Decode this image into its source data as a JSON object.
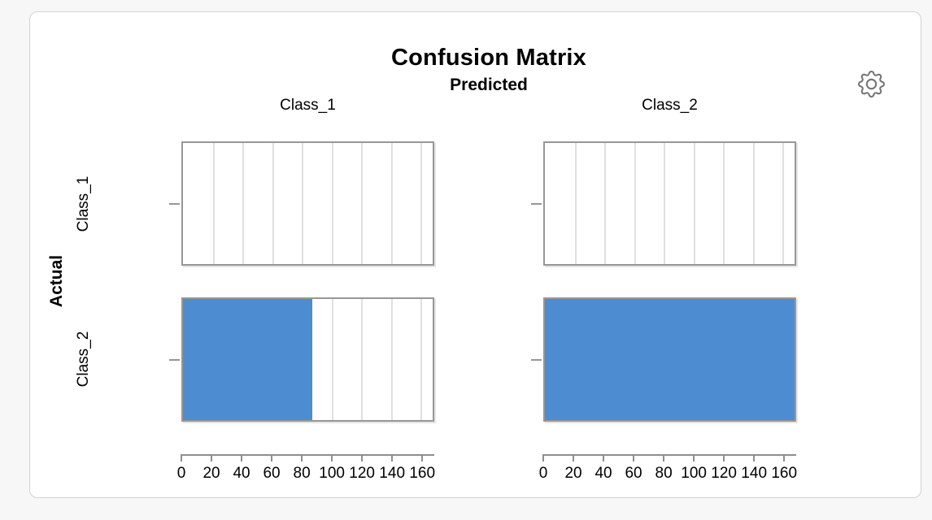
{
  "icons": {
    "settings": "gear"
  },
  "chart_data": {
    "type": "bar",
    "title": "Confusion Matrix",
    "facet_top_label": "Predicted",
    "facet_left_label": "Actual",
    "columns": [
      "Class_1",
      "Class_2"
    ],
    "rows": [
      "Class_1",
      "Class_2"
    ],
    "matrix": [
      [
        0,
        0
      ],
      [
        87,
        168
      ]
    ],
    "xlim": [
      0,
      168
    ],
    "ticks": [
      0,
      20,
      40,
      60,
      80,
      100,
      120,
      140,
      160
    ],
    "bar_color": "#4e8cd2",
    "panel_border_color": "#979797",
    "gridline_color": "#e0e0e0",
    "grid": true,
    "legend": "none"
  }
}
